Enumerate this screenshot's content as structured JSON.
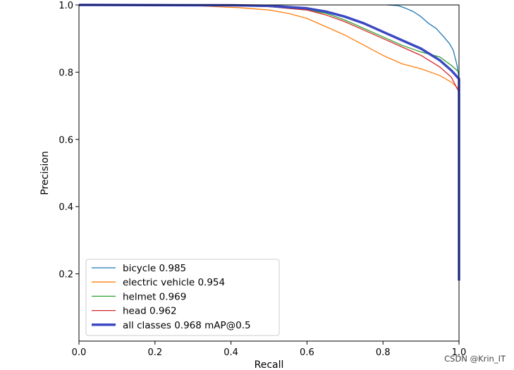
{
  "chart_data": {
    "type": "line",
    "xlabel": "Recall",
    "ylabel": "Precision",
    "xlim": [
      0,
      1
    ],
    "ylim": [
      0,
      1
    ],
    "xticks": [
      "0.0",
      "0.2",
      "0.4",
      "0.6",
      "0.8",
      "1.0"
    ],
    "yticks": [
      "0.2",
      "0.4",
      "0.6",
      "0.8",
      "1.0"
    ],
    "grid": false,
    "legend_position": "lower-left",
    "series": [
      {
        "name": "bicycle 0.985",
        "color": "#1f77b4",
        "points": [
          [
            0.81,
            1.0
          ],
          [
            0.84,
            0.998
          ],
          [
            0.86,
            0.99
          ],
          [
            0.88,
            0.98
          ],
          [
            0.9,
            0.965
          ],
          [
            0.92,
            0.945
          ],
          [
            0.94,
            0.93
          ],
          [
            0.96,
            0.905
          ],
          [
            0.975,
            0.885
          ],
          [
            0.985,
            0.865
          ],
          [
            0.995,
            0.82
          ],
          [
            1.0,
            0.78
          ]
        ]
      },
      {
        "name": "electric vehicle 0.954",
        "color": "#ff7f0e",
        "points": [
          [
            0.0,
            1.0
          ],
          [
            0.3,
            0.998
          ],
          [
            0.42,
            0.992
          ],
          [
            0.5,
            0.985
          ],
          [
            0.55,
            0.975
          ],
          [
            0.6,
            0.96
          ],
          [
            0.65,
            0.935
          ],
          [
            0.7,
            0.91
          ],
          [
            0.75,
            0.88
          ],
          [
            0.8,
            0.85
          ],
          [
            0.85,
            0.825
          ],
          [
            0.9,
            0.81
          ],
          [
            0.95,
            0.79
          ],
          [
            0.98,
            0.77
          ],
          [
            1.0,
            0.75
          ]
        ]
      },
      {
        "name": "helmet 0.969",
        "color": "#2ca02c",
        "points": [
          [
            0.0,
            1.0
          ],
          [
            0.4,
            0.998
          ],
          [
            0.5,
            0.995
          ],
          [
            0.6,
            0.985
          ],
          [
            0.65,
            0.975
          ],
          [
            0.7,
            0.955
          ],
          [
            0.75,
            0.93
          ],
          [
            0.8,
            0.905
          ],
          [
            0.85,
            0.88
          ],
          [
            0.9,
            0.86
          ],
          [
            0.95,
            0.845
          ],
          [
            0.98,
            0.82
          ],
          [
            1.0,
            0.8
          ]
        ]
      },
      {
        "name": "head 0.962",
        "color": "#d62728",
        "points": [
          [
            0.0,
            1.0
          ],
          [
            0.4,
            0.998
          ],
          [
            0.5,
            0.995
          ],
          [
            0.6,
            0.985
          ],
          [
            0.65,
            0.97
          ],
          [
            0.7,
            0.95
          ],
          [
            0.75,
            0.925
          ],
          [
            0.8,
            0.9
          ],
          [
            0.85,
            0.875
          ],
          [
            0.9,
            0.85
          ],
          [
            0.95,
            0.815
          ],
          [
            0.98,
            0.785
          ],
          [
            1.0,
            0.74
          ]
        ]
      },
      {
        "name": "all classes 0.968 mAP@0.5",
        "color": "#3b48c4",
        "points": [
          [
            0.0,
            1.0
          ],
          [
            0.4,
            0.999
          ],
          [
            0.5,
            0.997
          ],
          [
            0.6,
            0.99
          ],
          [
            0.65,
            0.98
          ],
          [
            0.7,
            0.965
          ],
          [
            0.75,
            0.945
          ],
          [
            0.8,
            0.92
          ],
          [
            0.85,
            0.895
          ],
          [
            0.9,
            0.87
          ],
          [
            0.95,
            0.835
          ],
          [
            0.98,
            0.805
          ],
          [
            1.0,
            0.78
          ],
          [
            1.0,
            0.18
          ]
        ]
      }
    ]
  },
  "watermark": "CSDN @Krin_IT"
}
